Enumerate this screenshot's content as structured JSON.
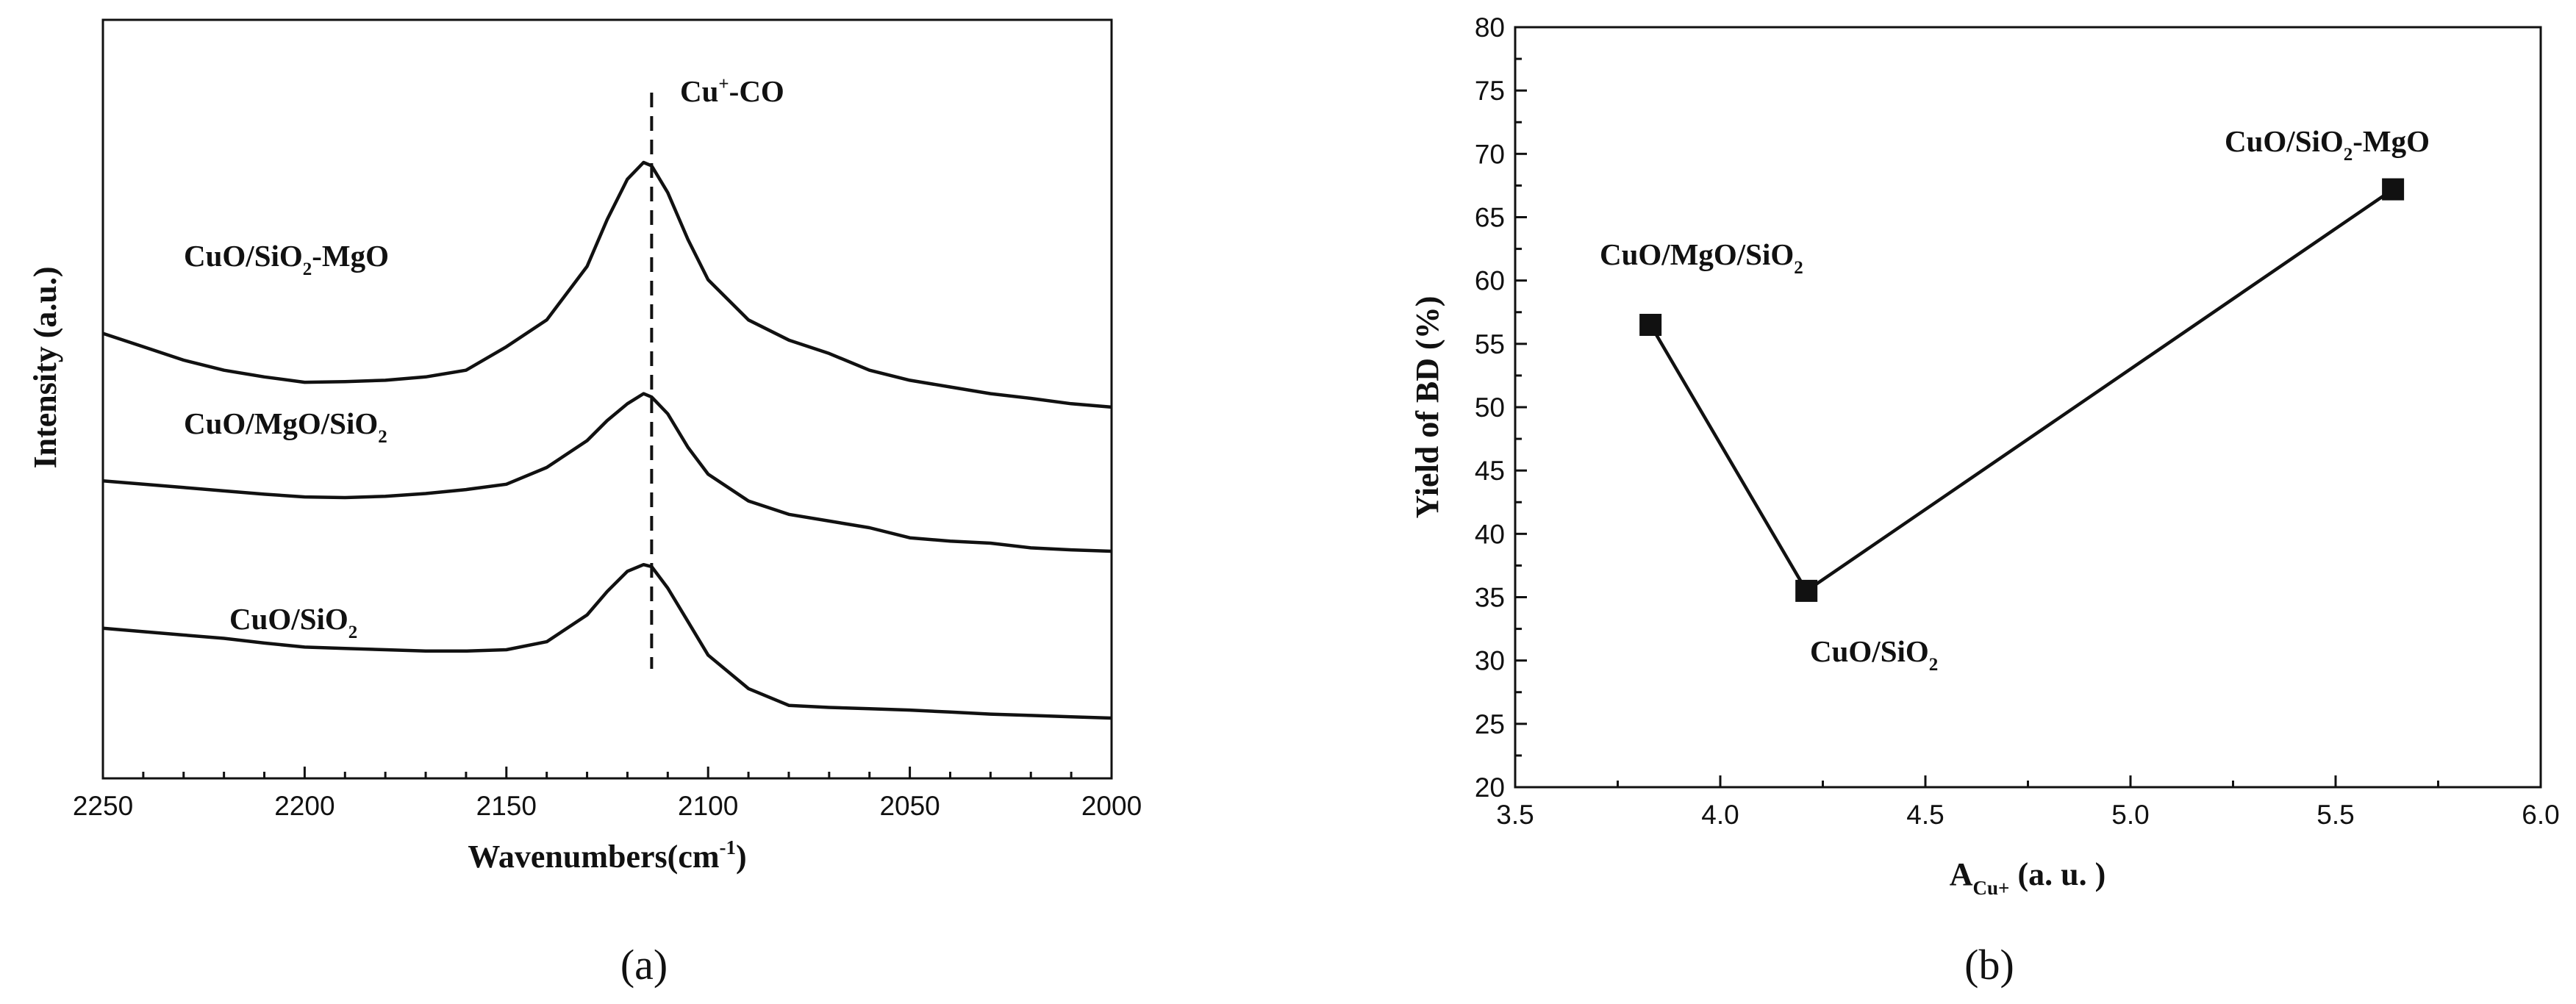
{
  "chart_data": [
    {
      "type": "line",
      "panel_label": "(a)",
      "xlabel": {
        "text": "Wavenumbers(cm",
        "sup": "-1",
        "tail": ")"
      },
      "ylabel": "Intensity (a.u.)",
      "xlim": [
        2250,
        2000
      ],
      "x_reversed": true,
      "x_ticks": [
        "2250",
        "2200",
        "2150",
        "2100",
        "2050",
        "2000"
      ],
      "y_ticks_labeled": false,
      "peak_marker": {
        "x": 2114,
        "label": {
          "text": "Cu",
          "sup": "+",
          "tail": "-CO"
        }
      },
      "series": [
        {
          "name": {
            "text": "CuO/SiO",
            "sub": "2",
            "tail": "-MgO"
          },
          "x": [
            2250,
            2240,
            2230,
            2220,
            2210,
            2200,
            2190,
            2180,
            2170,
            2160,
            2150,
            2140,
            2130,
            2125,
            2120,
            2116,
            2114,
            2110,
            2105,
            2100,
            2090,
            2080,
            2070,
            2060,
            2050,
            2040,
            2030,
            2020,
            2010,
            2000
          ],
          "y": [
            0.62,
            0.6,
            0.58,
            0.565,
            0.555,
            0.547,
            0.548,
            0.55,
            0.555,
            0.565,
            0.6,
            0.64,
            0.72,
            0.79,
            0.85,
            0.875,
            0.87,
            0.83,
            0.76,
            0.7,
            0.64,
            0.61,
            0.59,
            0.565,
            0.55,
            0.54,
            0.53,
            0.523,
            0.515,
            0.51
          ]
        },
        {
          "name": {
            "text": "CuO/MgO/SiO",
            "sub": "2",
            "tail": ""
          },
          "x": [
            2250,
            2240,
            2230,
            2220,
            2210,
            2200,
            2190,
            2180,
            2170,
            2160,
            2150,
            2140,
            2130,
            2125,
            2120,
            2116,
            2114,
            2110,
            2105,
            2100,
            2090,
            2080,
            2070,
            2060,
            2050,
            2040,
            2030,
            2020,
            2010,
            2000
          ],
          "y": [
            0.4,
            0.395,
            0.39,
            0.385,
            0.38,
            0.376,
            0.375,
            0.377,
            0.381,
            0.387,
            0.395,
            0.42,
            0.46,
            0.49,
            0.515,
            0.53,
            0.525,
            0.5,
            0.45,
            0.41,
            0.37,
            0.35,
            0.34,
            0.33,
            0.315,
            0.31,
            0.307,
            0.3,
            0.297,
            0.295
          ]
        },
        {
          "name": {
            "text": "CuO/SiO",
            "sub": "2",
            "tail": ""
          },
          "x": [
            2250,
            2240,
            2230,
            2220,
            2210,
            2200,
            2190,
            2180,
            2170,
            2160,
            2150,
            2140,
            2130,
            2125,
            2120,
            2116,
            2114,
            2110,
            2105,
            2100,
            2090,
            2080,
            2070,
            2060,
            2050,
            2040,
            2030,
            2020,
            2010,
            2000
          ],
          "y": [
            0.18,
            0.175,
            0.17,
            0.165,
            0.158,
            0.152,
            0.15,
            0.148,
            0.146,
            0.146,
            0.148,
            0.16,
            0.2,
            0.235,
            0.265,
            0.275,
            0.272,
            0.24,
            0.19,
            0.14,
            0.09,
            0.065,
            0.062,
            0.06,
            0.058,
            0.055,
            0.052,
            0.05,
            0.048,
            0.046
          ]
        }
      ]
    },
    {
      "type": "line",
      "panel_label": "(b)",
      "xlabel": {
        "text": "A",
        "sub": "Cu+",
        "tail": " (a. u. )"
      },
      "ylabel": "Yield of BD (%)",
      "xlim": [
        3.5,
        6.0
      ],
      "ylim": [
        20,
        80
      ],
      "x_ticks": [
        "3.5",
        "4.0",
        "4.5",
        "5.0",
        "5.5",
        "6.0"
      ],
      "y_ticks": [
        "20",
        "25",
        "30",
        "35",
        "40",
        "45",
        "50",
        "55",
        "60",
        "65",
        "70",
        "75",
        "80"
      ],
      "marker": "square",
      "points": [
        {
          "x": 3.83,
          "y": 56.5,
          "label": {
            "text": "CuO/MgO/SiO",
            "sub": "2",
            "tail": ""
          }
        },
        {
          "x": 4.21,
          "y": 35.5,
          "label": {
            "text": "CuO/SiO",
            "sub": "2",
            "tail": ""
          }
        },
        {
          "x": 5.64,
          "y": 67.2,
          "label": {
            "text": "CuO/SiO",
            "sub": "2",
            "tail": "-MgO"
          }
        }
      ]
    }
  ]
}
